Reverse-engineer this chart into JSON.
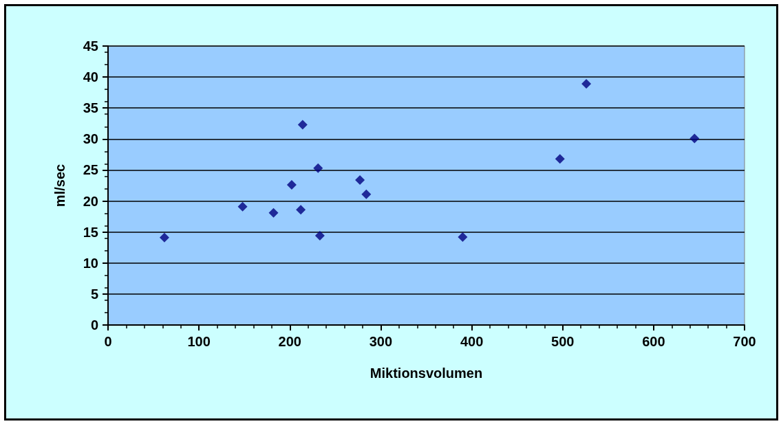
{
  "chart_data": {
    "type": "scatter",
    "xlabel": "Miktionsvolumen",
    "ylabel": "ml/sec",
    "x": [
      62,
      148,
      182,
      202,
      212,
      214,
      231,
      233,
      277,
      284,
      390,
      497,
      526,
      645
    ],
    "values": [
      14.1,
      19.1,
      18.1,
      22.6,
      18.6,
      32.3,
      25.3,
      14.4,
      23.4,
      21.1,
      14.2,
      26.8,
      38.9,
      30.1
    ],
    "color": "#000080",
    "marker": "diamond",
    "grid": "y",
    "xlim": [
      0,
      700
    ],
    "xticks": [
      0,
      100,
      200,
      300,
      400,
      500,
      600,
      700
    ],
    "ylim": [
      0,
      45
    ],
    "yticks": [
      0,
      5,
      10,
      15,
      20,
      25,
      30,
      35,
      40,
      45
    ]
  }
}
